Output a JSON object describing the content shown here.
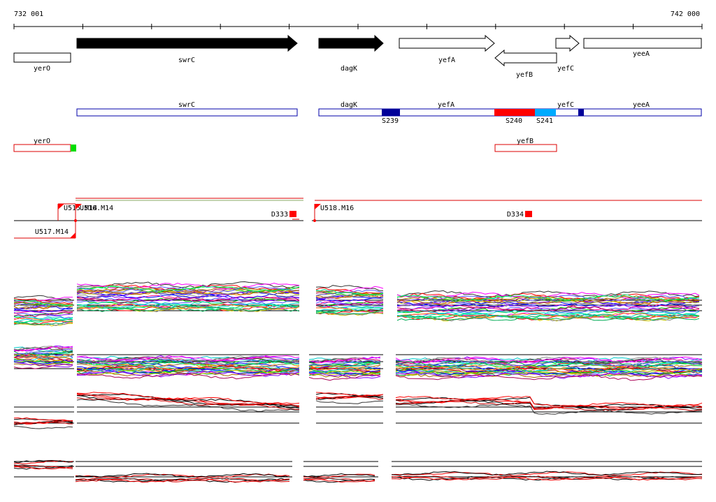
{
  "coordinates": {
    "start_label": "732 001",
    "end_label": "742 000"
  },
  "annotated_genes": [
    {
      "name": "yerO",
      "strand": "-"
    },
    {
      "name": "swrC",
      "strand": "+",
      "filled": true
    },
    {
      "name": "dagK",
      "strand": "+",
      "filled": true
    },
    {
      "name": "yefA",
      "strand": "+"
    },
    {
      "name": "yefB",
      "strand": "-"
    },
    {
      "name": "yefC",
      "strand": "+"
    },
    {
      "name": "yeeA",
      "strand": "+"
    }
  ],
  "transcribed_segments": [
    {
      "name": "swrC",
      "color": "#0000aa"
    },
    {
      "name": "dagK",
      "color": "#0000aa"
    },
    {
      "name": "yefA",
      "color": "#0000aa"
    },
    {
      "name": "yefC",
      "color": "#0000aa"
    },
    {
      "name": "yeeA",
      "color": "#0000aa"
    }
  ],
  "antisense_segments": [
    {
      "name": "yerO",
      "color": "#dd0000"
    },
    {
      "name": "yefB",
      "color": "#dd0000"
    }
  ],
  "blocks": [
    {
      "name": "S239",
      "color": "#000099"
    },
    {
      "name": "S240",
      "color": "#ff0000"
    },
    {
      "name": "S241",
      "color": "#00aaff"
    }
  ],
  "upshifts": [
    {
      "name": "U515.M14"
    },
    {
      "name": "U516.M14"
    },
    {
      "name": "U517.M14"
    },
    {
      "name": "U518.M16"
    }
  ],
  "downshifts": [
    {
      "name": "D333"
    },
    {
      "name": "D334"
    }
  ],
  "colors": {
    "gene_outline": "#000000",
    "sense_track": "#0000aa",
    "antisense_track": "#dd0000",
    "marker_red": "#ff0000",
    "marker_green": "#00dd00",
    "baseline": "#000000"
  }
}
